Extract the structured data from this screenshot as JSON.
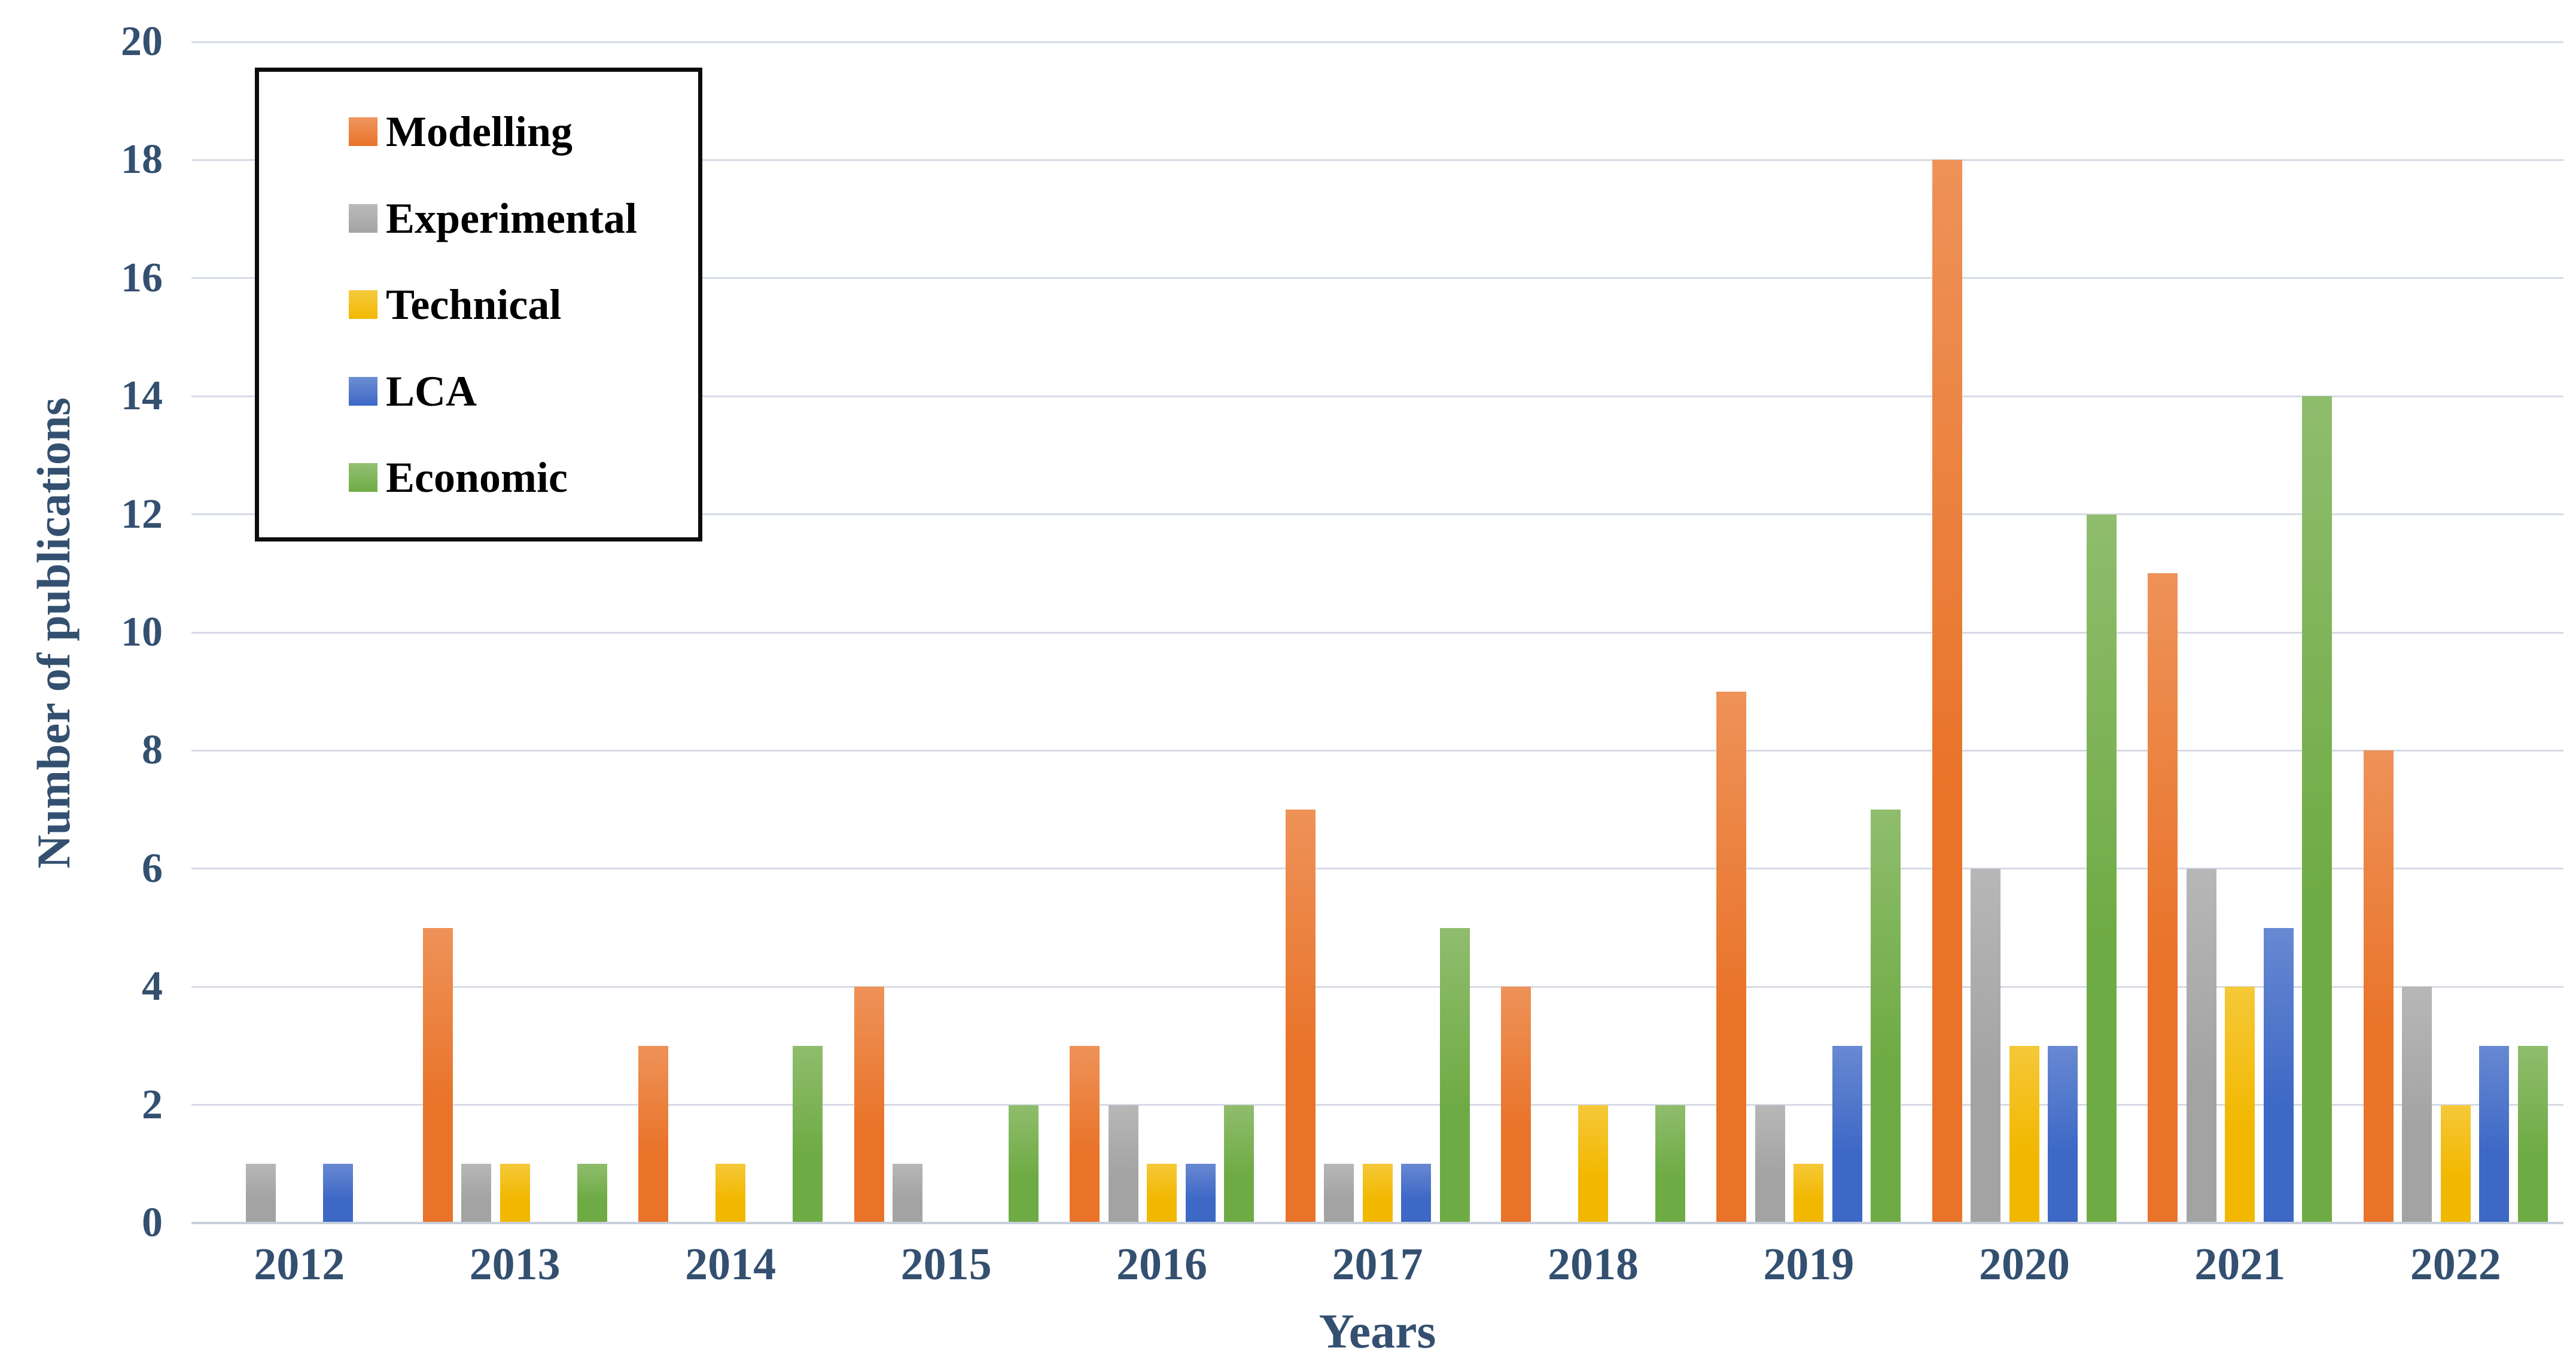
{
  "chart_data": {
    "type": "bar",
    "title": "",
    "xlabel": "Years",
    "ylabel": "Number of publications",
    "ylim": [
      0,
      20
    ],
    "yticks": [
      0,
      2,
      4,
      6,
      8,
      10,
      12,
      14,
      16,
      18,
      20
    ],
    "grid": true,
    "legend_position": "top-left",
    "categories": [
      "2012",
      "2013",
      "2014",
      "2015",
      "2016",
      "2017",
      "2018",
      "2019",
      "2020",
      "2021",
      "2022"
    ],
    "series": [
      {
        "name": "Modelling",
        "color": "#E97329",
        "values": [
          0,
          5,
          3,
          4,
          3,
          7,
          4,
          9,
          18,
          11,
          8
        ]
      },
      {
        "name": "Experimental",
        "color": "#A3A3A3",
        "values": [
          1,
          1,
          0,
          1,
          2,
          1,
          0,
          2,
          6,
          6,
          4
        ]
      },
      {
        "name": "Technical",
        "color": "#F2B800",
        "values": [
          0,
          1,
          1,
          0,
          1,
          1,
          2,
          1,
          3,
          4,
          2
        ]
      },
      {
        "name": "LCA",
        "color": "#3D68C5",
        "values": [
          1,
          0,
          0,
          0,
          1,
          1,
          0,
          3,
          3,
          5,
          3
        ]
      },
      {
        "name": "Economic",
        "color": "#6FAB44",
        "values": [
          0,
          1,
          3,
          2,
          2,
          5,
          2,
          7,
          12,
          14,
          3
        ]
      }
    ]
  },
  "colors": {
    "axis_text": "#345070",
    "grid_line": "#D6DBE5",
    "axis_line": "#C7CFDB",
    "legend_text": "#000000",
    "legend_border": "#0d0d0d"
  }
}
